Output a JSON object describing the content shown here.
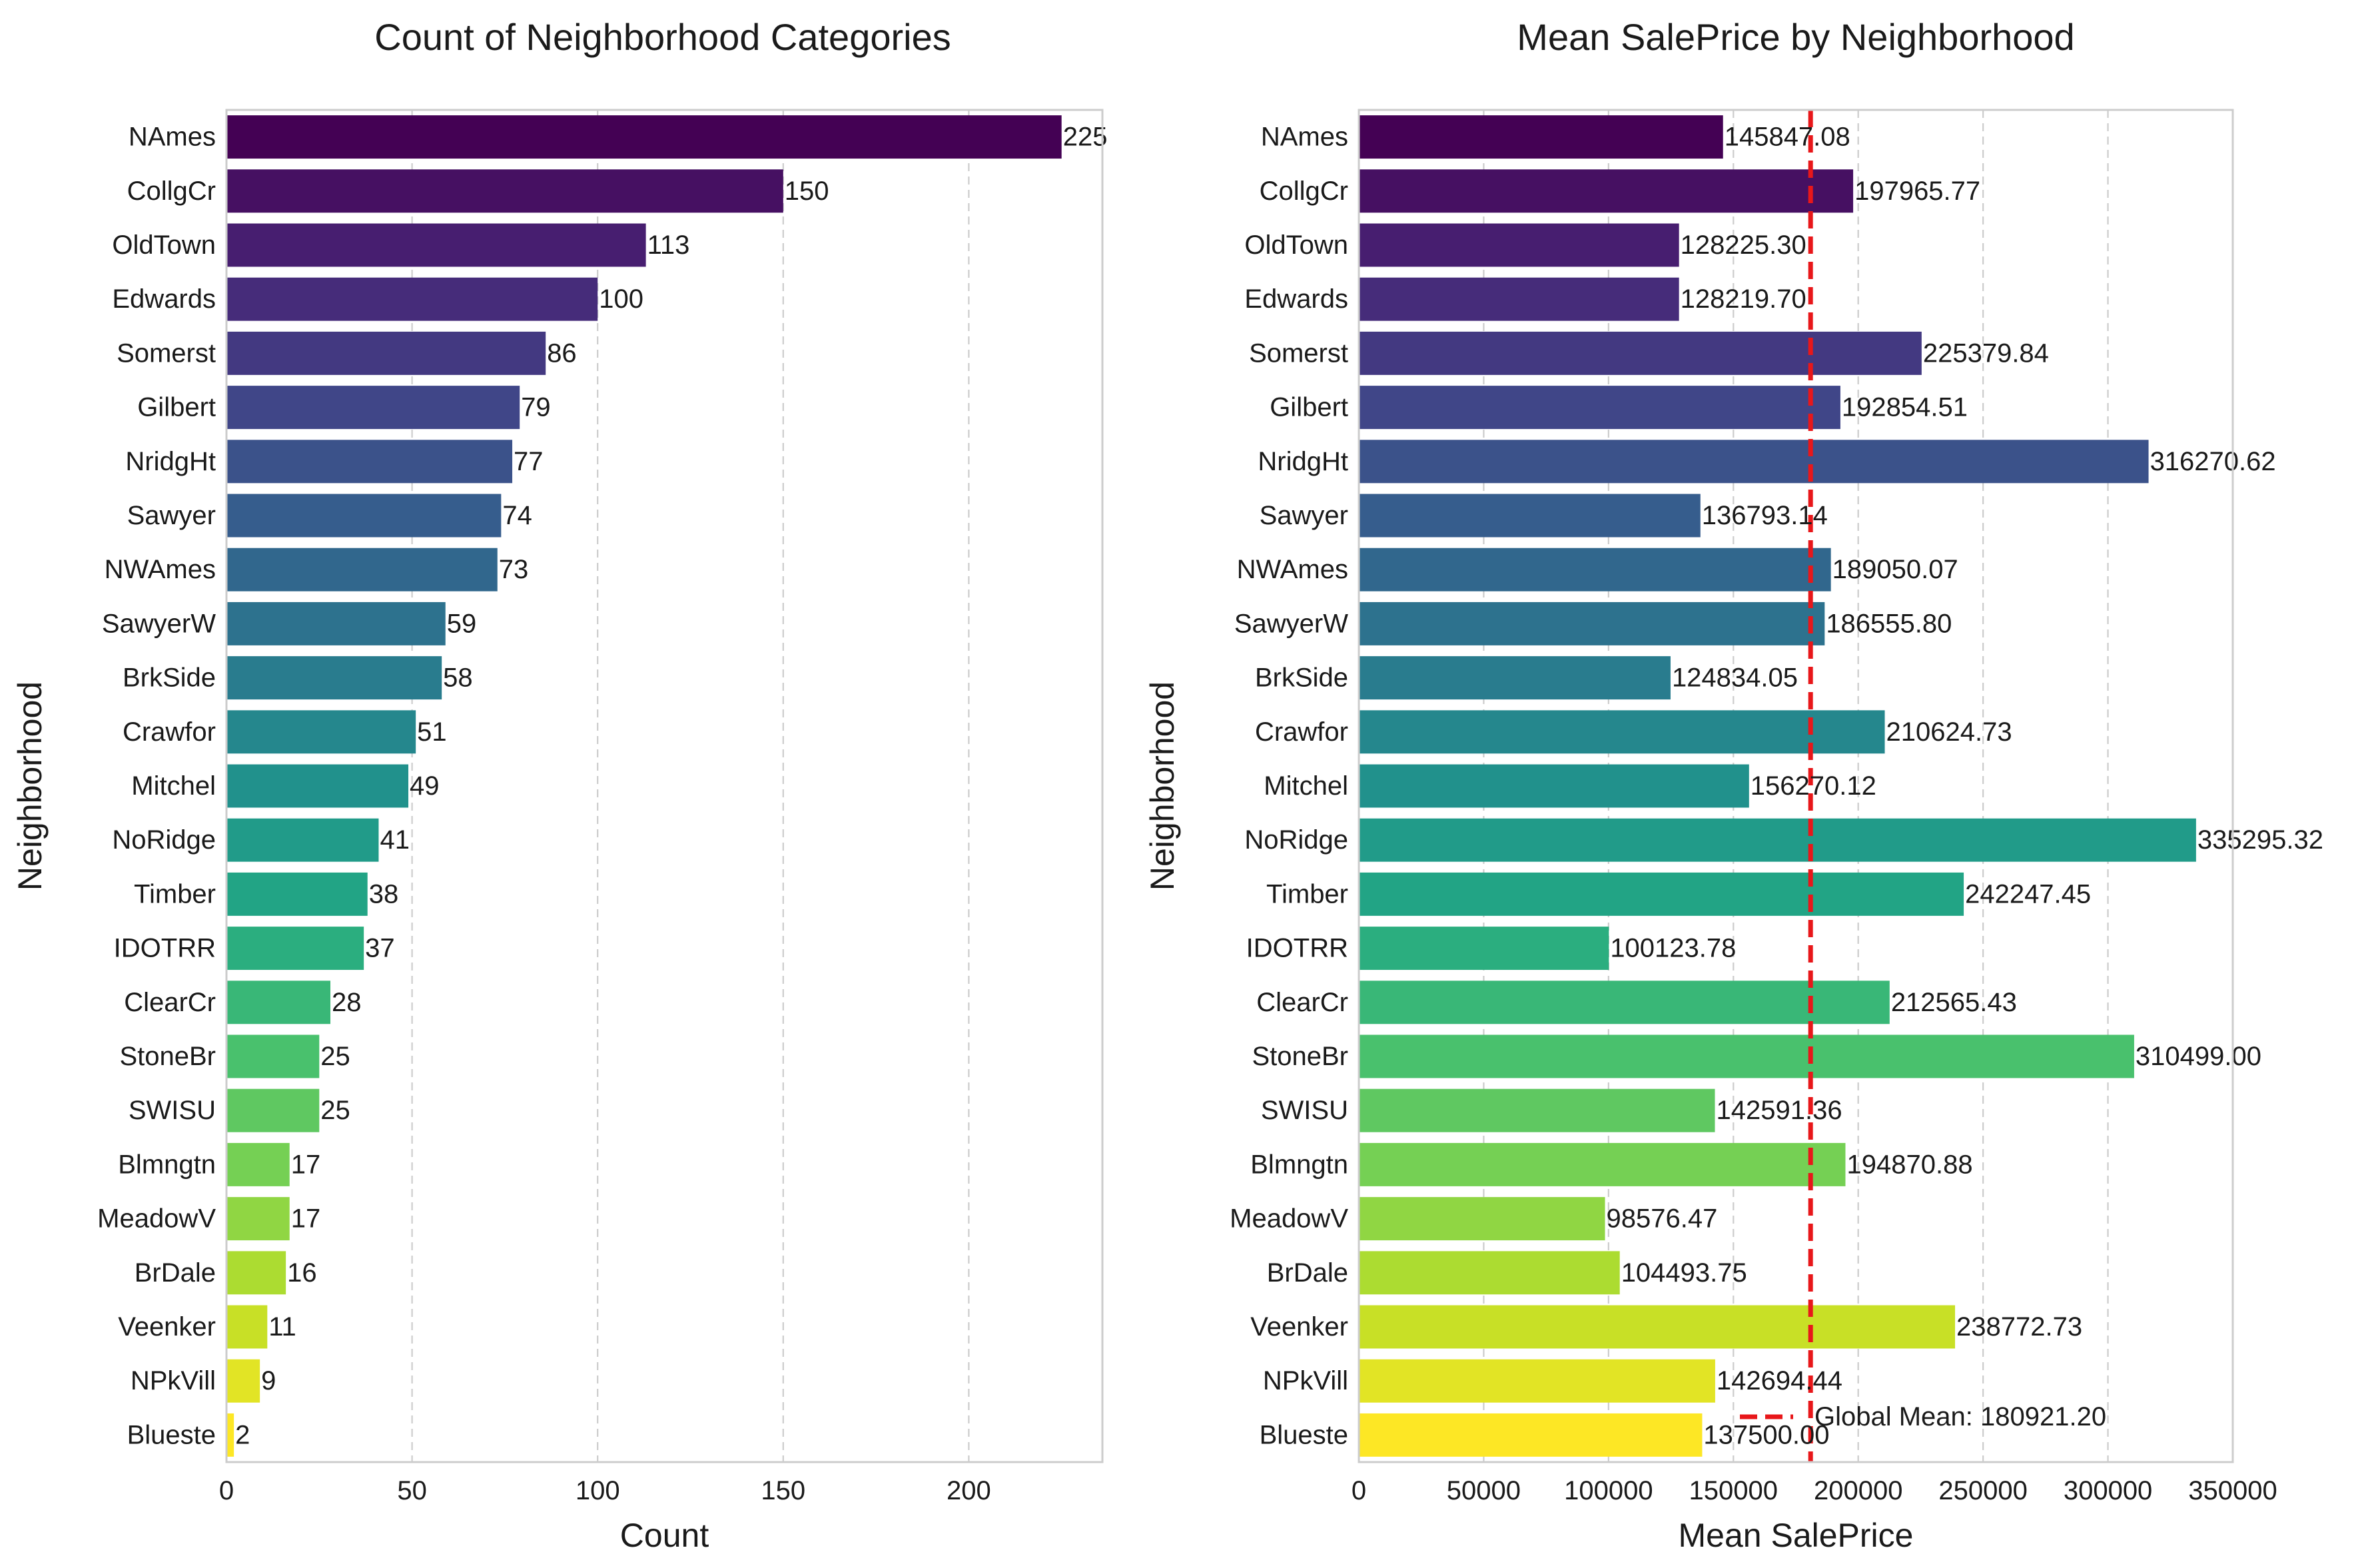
{
  "chart_data": [
    {
      "type": "bar",
      "orientation": "horizontal",
      "title": "Count of Neighborhood Categories",
      "xlabel": "Count",
      "ylabel": "Neighborhood",
      "xlim": [
        0,
        236
      ],
      "xticks": [
        0,
        50,
        100,
        150,
        200
      ],
      "grid": "x-dashed",
      "categories": [
        "NAmes",
        "CollgCr",
        "OldTown",
        "Edwards",
        "Somerst",
        "Gilbert",
        "NridgHt",
        "Sawyer",
        "NWAmes",
        "SawyerW",
        "BrkSide",
        "Crawfor",
        "Mitchel",
        "NoRidge",
        "Timber",
        "IDOTRR",
        "ClearCr",
        "StoneBr",
        "SWISU",
        "Blmngtn",
        "MeadowV",
        "BrDale",
        "Veenker",
        "NPkVill",
        "Blueste"
      ],
      "values": [
        225,
        150,
        113,
        100,
        86,
        79,
        77,
        74,
        73,
        59,
        58,
        51,
        49,
        41,
        38,
        37,
        28,
        25,
        25,
        17,
        17,
        16,
        11,
        9,
        2
      ],
      "value_labels": [
        "225",
        "150",
        "113",
        "100",
        "86",
        "79",
        "77",
        "74",
        "73",
        "59",
        "58",
        "51",
        "49",
        "41",
        "38",
        "37",
        "28",
        "25",
        "25",
        "17",
        "17",
        "16",
        "11",
        "9",
        "2"
      ],
      "colormap": "viridis"
    },
    {
      "type": "bar",
      "orientation": "horizontal",
      "title": "Mean SalePrice by Neighborhood",
      "xlabel": "Mean SalePrice",
      "ylabel": "Neighborhood",
      "xlim": [
        0,
        350000
      ],
      "xticks": [
        0,
        50000,
        100000,
        150000,
        200000,
        250000,
        300000,
        350000
      ],
      "grid": "x-dashed",
      "categories": [
        "NAmes",
        "CollgCr",
        "OldTown",
        "Edwards",
        "Somerst",
        "Gilbert",
        "NridgHt",
        "Sawyer",
        "NWAmes",
        "SawyerW",
        "BrkSide",
        "Crawfor",
        "Mitchel",
        "NoRidge",
        "Timber",
        "IDOTRR",
        "ClearCr",
        "StoneBr",
        "SWISU",
        "Blmngtn",
        "MeadowV",
        "BrDale",
        "Veenker",
        "NPkVill",
        "Blueste"
      ],
      "values": [
        145847.08,
        197965.77,
        128225.3,
        128219.7,
        225379.84,
        192854.51,
        316270.62,
        136793.14,
        189050.07,
        186555.8,
        124834.05,
        210624.73,
        156270.12,
        335295.32,
        242247.45,
        100123.78,
        212565.43,
        310499.0,
        142591.36,
        194870.88,
        98576.47,
        104493.75,
        238772.73,
        142694.44,
        137500.0
      ],
      "value_labels": [
        "145847.08",
        "197965.77",
        "128225.30",
        "128219.70",
        "225379.84",
        "192854.51",
        "316270.62",
        "136793.14",
        "189050.07",
        "186555.80",
        "124834.05",
        "210624.73",
        "156270.12",
        "335295.32",
        "242247.45",
        "100123.78",
        "212565.43",
        "310499.00",
        "142591.36",
        "194870.88",
        "98576.47",
        "104493.75",
        "238772.73",
        "142694.44",
        "137500.00"
      ],
      "reference_line": {
        "value": 180921.2,
        "label": "Global Mean: 180921.20",
        "color": "#e8171a",
        "style": "dashed"
      },
      "legend": "bottom-right",
      "colormap": "viridis"
    }
  ]
}
